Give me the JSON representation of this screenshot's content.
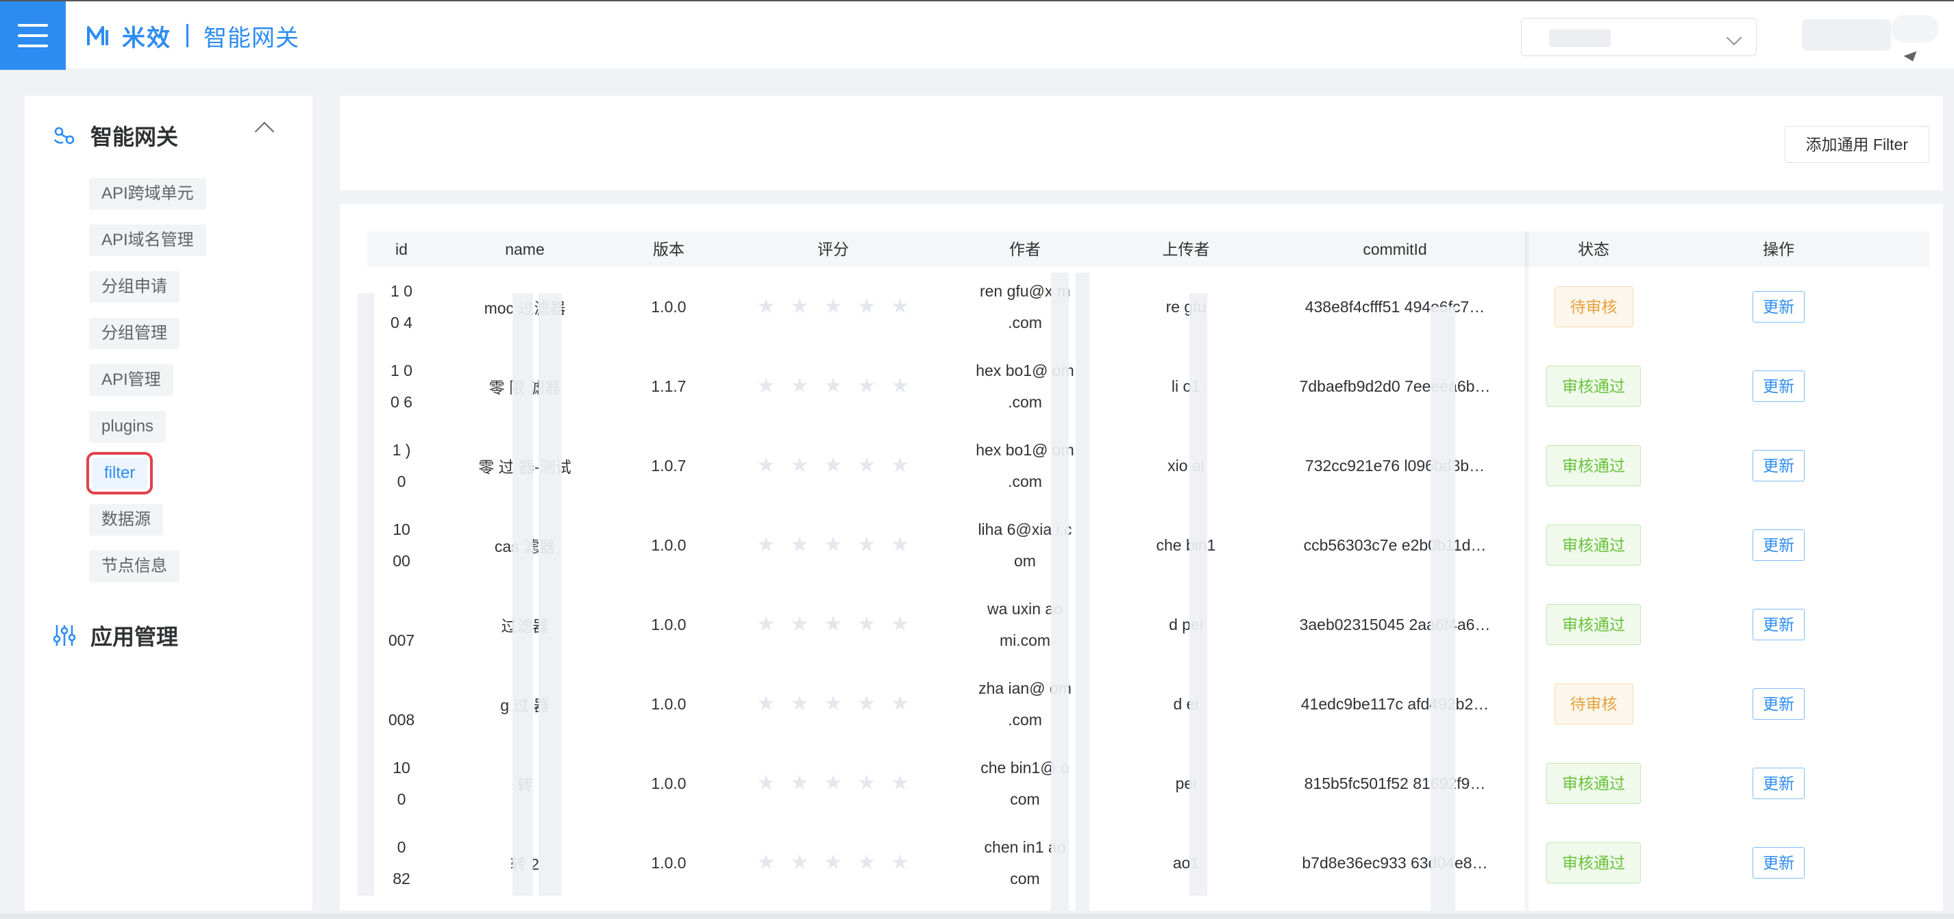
{
  "header": {
    "brand_cn": "米效",
    "product": "智能网关",
    "env_select_value": "",
    "user_name": ""
  },
  "sidebar": {
    "groups": [
      {
        "title": "智能网关",
        "icon": "gateway-icon",
        "expanded": true
      },
      {
        "title": "应用管理",
        "icon": "sliders-icon",
        "expanded": false
      }
    ],
    "items": [
      {
        "label": "API跨域单元"
      },
      {
        "label": "API域名管理"
      },
      {
        "label": "分组申请"
      },
      {
        "label": "分组管理"
      },
      {
        "label": "API管理"
      },
      {
        "label": "plugins"
      },
      {
        "label": "filter",
        "active": true
      },
      {
        "label": "数据源"
      },
      {
        "label": "节点信息"
      }
    ]
  },
  "toolbar": {
    "add_filter_label": "添加通用 Filter"
  },
  "table": {
    "columns": [
      "id",
      "name",
      "版本",
      "评分",
      "作者",
      "上传者",
      "commitId",
      "状态",
      "操作"
    ],
    "rows": [
      {
        "id": "1  0\n0  4",
        "name": "moc    过滤器",
        "version": "1.0.0",
        "rating": 0,
        "author": "ren    gfu@x    m\n.com",
        "uploader": "re    gfu",
        "commit": "438e8f4cfff51    494e6fc7…",
        "status": "待审核",
        "status_type": "pending",
        "action": "更新"
      },
      {
        "id": "1  0\n0  6",
        "name": "零    限    滤器",
        "version": "1.1.7",
        "rating": 0,
        "author": "hex    bo1@    om\n.com",
        "uploader": "li    o1",
        "commit": "7dbaefb9d2d0    7eeeea6b…",
        "status": "审核通过",
        "status_type": "pass",
        "action": "更新"
      },
      {
        "id": "1  )\n0",
        "name": "零    过    器-测试",
        "version": "1.0.7",
        "rating": 0,
        "author": "hex    bo1@    om\n.com",
        "uploader": "xio    ai",
        "commit": "732cc921e76    l096bd3b…",
        "status": "审核通过",
        "status_type": "pass",
        "action": "更新"
      },
      {
        "id": "10\n00",
        "name": "cas    滤器",
        "version": "1.0.0",
        "rating": 0,
        "author": "liha    6@xia    i.c\nom",
        "uploader": "che    bin1",
        "commit": "ccb56303c7e    e2b0b11d…",
        "status": "审核通过",
        "status_type": "pass",
        "action": "更新"
      },
      {
        "id": "\n007",
        "name": "    过滤器",
        "version": "1.0.0",
        "rating": 0,
        "author": "wa    uxin    ao\nmi.com",
        "uploader": "d    pei",
        "commit": "3aeb02315045    2aa6f4a6…",
        "status": "审核通过",
        "status_type": "pass",
        "action": "更新"
      },
      {
        "id": "\n008",
        "name": "g    过    器",
        "version": "1.0.0",
        "rating": 0,
        "author": "zha    ian@    om\n.com",
        "uploader": "d    ei",
        "commit": "41edc9be117c    afd492b2…",
        "status": "待审核",
        "status_type": "pending",
        "action": "更新"
      },
      {
        "id": "10\n0",
        "name": "    转",
        "version": "1.0.0",
        "rating": 0,
        "author": "che    bin1@    o\ncom",
        "uploader": "    pei",
        "commit": "815b5fc501f52    81692f9…",
        "status": "审核通过",
        "status_type": "pass",
        "action": "更新"
      },
      {
        "id": "  0\n82",
        "name": "    转    2",
        "version": "1.0.0",
        "rating": 0,
        "author": "chen    in1    ao\ncom",
        "uploader": "    ao1",
        "commit": "b7d8e36ec933    63d04e8…",
        "status": "审核通过",
        "status_type": "pass",
        "action": "更新"
      }
    ]
  },
  "colors": {
    "primary": "#2d8cf0",
    "pass": "#67c23a",
    "pending": "#e6a23c",
    "highlight_outline": "#e0414b"
  }
}
